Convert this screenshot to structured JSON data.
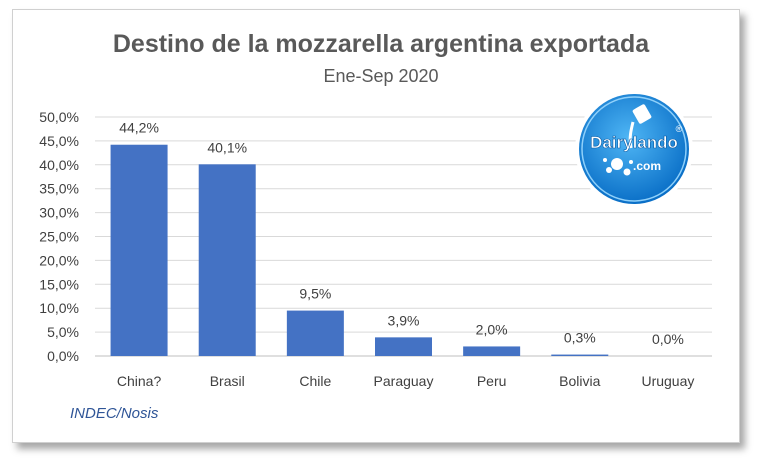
{
  "chart_data": {
    "type": "bar",
    "title": "Destino de la mozzarella argentina exportada",
    "subtitle": "Ene-Sep 2020",
    "categories": [
      "China?",
      "Brasil",
      "Chile",
      "Paraguay",
      "Peru",
      "Bolivia",
      "Uruguay"
    ],
    "values": [
      44.2,
      40.1,
      9.5,
      3.9,
      2.0,
      0.3,
      0.0
    ],
    "data_labels": [
      "44,2%",
      "40,1%",
      "9,5%",
      "3,9%",
      "2,0%",
      "0,3%",
      "0,0%"
    ],
    "y_ticks": [
      "0,0%",
      "5,0%",
      "10,0%",
      "15,0%",
      "20,0%",
      "25,0%",
      "30,0%",
      "35,0%",
      "40,0%",
      "45,0%",
      "50,0%"
    ],
    "ylim": [
      0,
      50
    ],
    "grid": true,
    "bar_color": "#4472c4",
    "xlabel": "",
    "ylabel": ""
  },
  "source": "INDEC/Nosis",
  "logo": {
    "text_main": "Dairylando",
    "text_sub": ".com",
    "registered": "®",
    "color": "#1a8fe3"
  }
}
